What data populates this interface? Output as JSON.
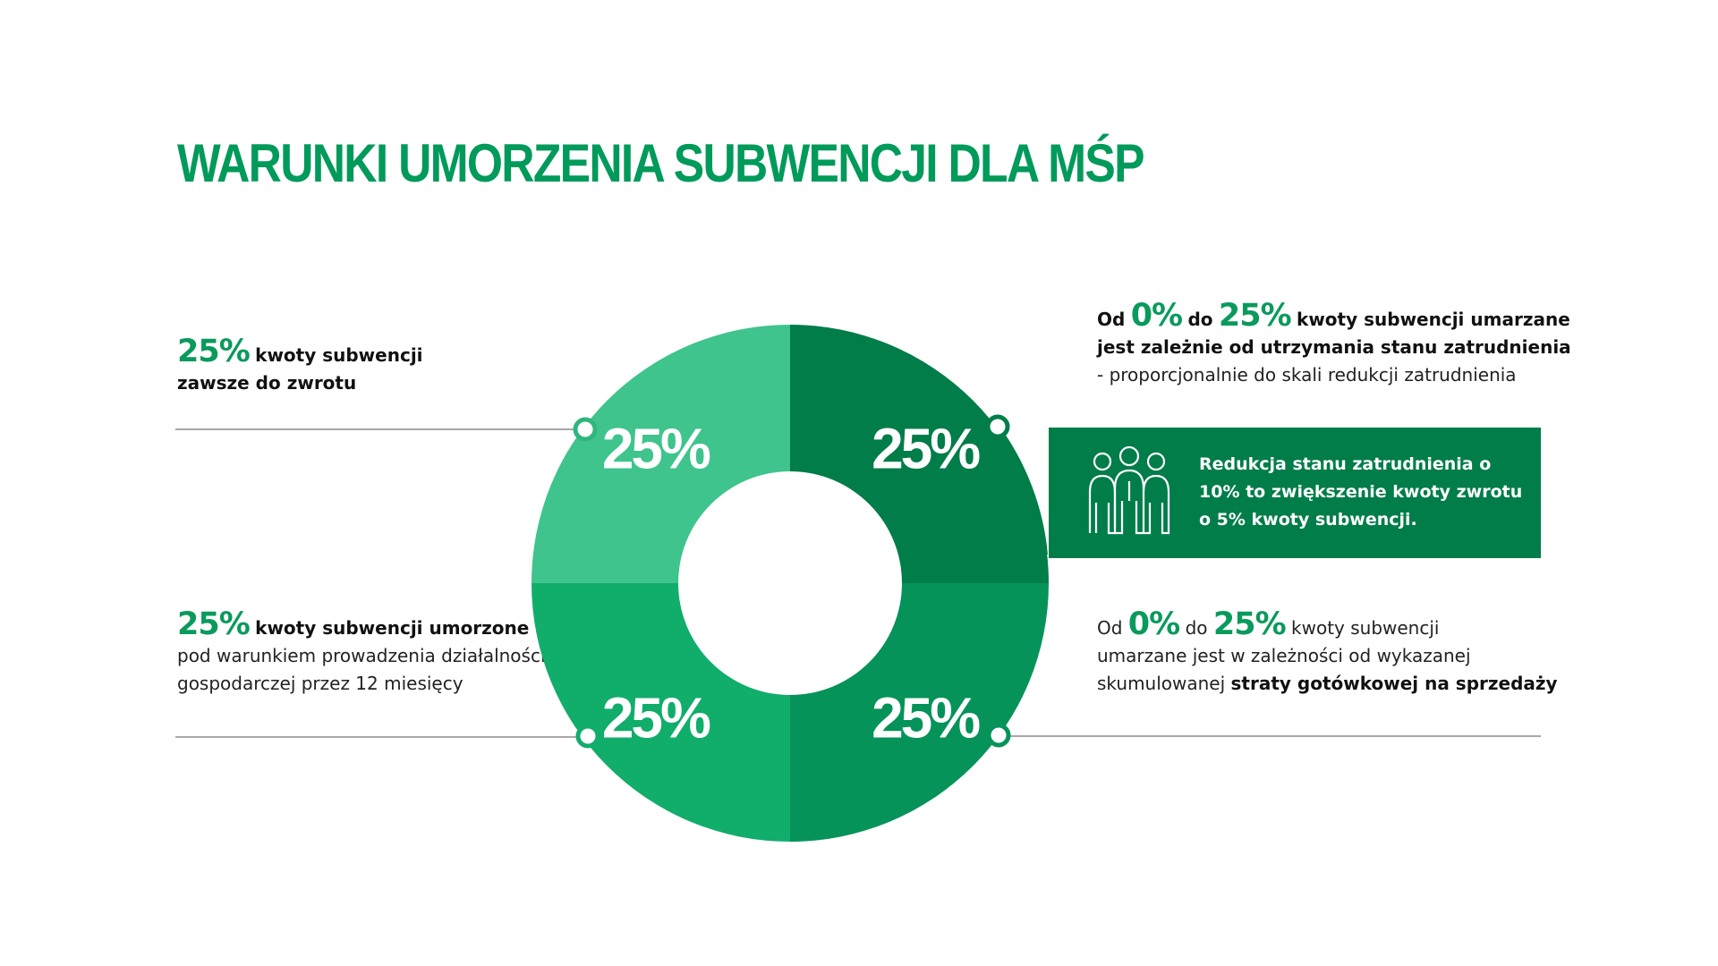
{
  "title": "WARUNKI UMORZENIA SUBWENCJI DLA MŚP",
  "blocks": {
    "top_left": {
      "big": "25%",
      "line1": "kwoty subwencji",
      "line2": "zawsze do zwrotu"
    },
    "bottom_left": {
      "big": "25%",
      "line1": "kwoty subwencji umorzone",
      "line2": "pod warunkiem prowadzenia działalności",
      "line3": "gospodarczej przez 12 miesięcy"
    },
    "top_right": {
      "od": "Od",
      "big1": "0%",
      "do": "do",
      "big2": "25%",
      "line1": "kwoty subwencji umarzane",
      "line2": "jest zależnie od utrzymania stanu zatrudnienia",
      "line3": "- proporcjonalnie do skali redukcji zatrudnienia"
    },
    "bottom_right": {
      "od": "Od",
      "big1": "0%",
      "do": "do",
      "big2": "25%",
      "line1": "kwoty subwencji",
      "line2": "umarzane jest w zależności od wykazanej",
      "line3a": "skumulowanej",
      "line3b": "straty gotówkowej na sprzedaży"
    }
  },
  "callout": {
    "text": "Redukcja stanu zatrudnienia o 10% to zwiększenie kwoty zwrotu o 5% kwoty subwencji.",
    "icon": "people-icon"
  },
  "colors": {
    "title": "#009a5a",
    "top_left": "#3ec48c",
    "top_right": "#017d49",
    "bottom_right": "#05935a",
    "bottom_left": "#11ad6b",
    "callout": "#017d49"
  },
  "chart_data": {
    "type": "pie",
    "categories": [
      "top-right",
      "bottom-right",
      "bottom-left",
      "top-left"
    ],
    "values": [
      25,
      25,
      25,
      25
    ],
    "labels": [
      "25%",
      "25%",
      "25%",
      "25%"
    ]
  }
}
